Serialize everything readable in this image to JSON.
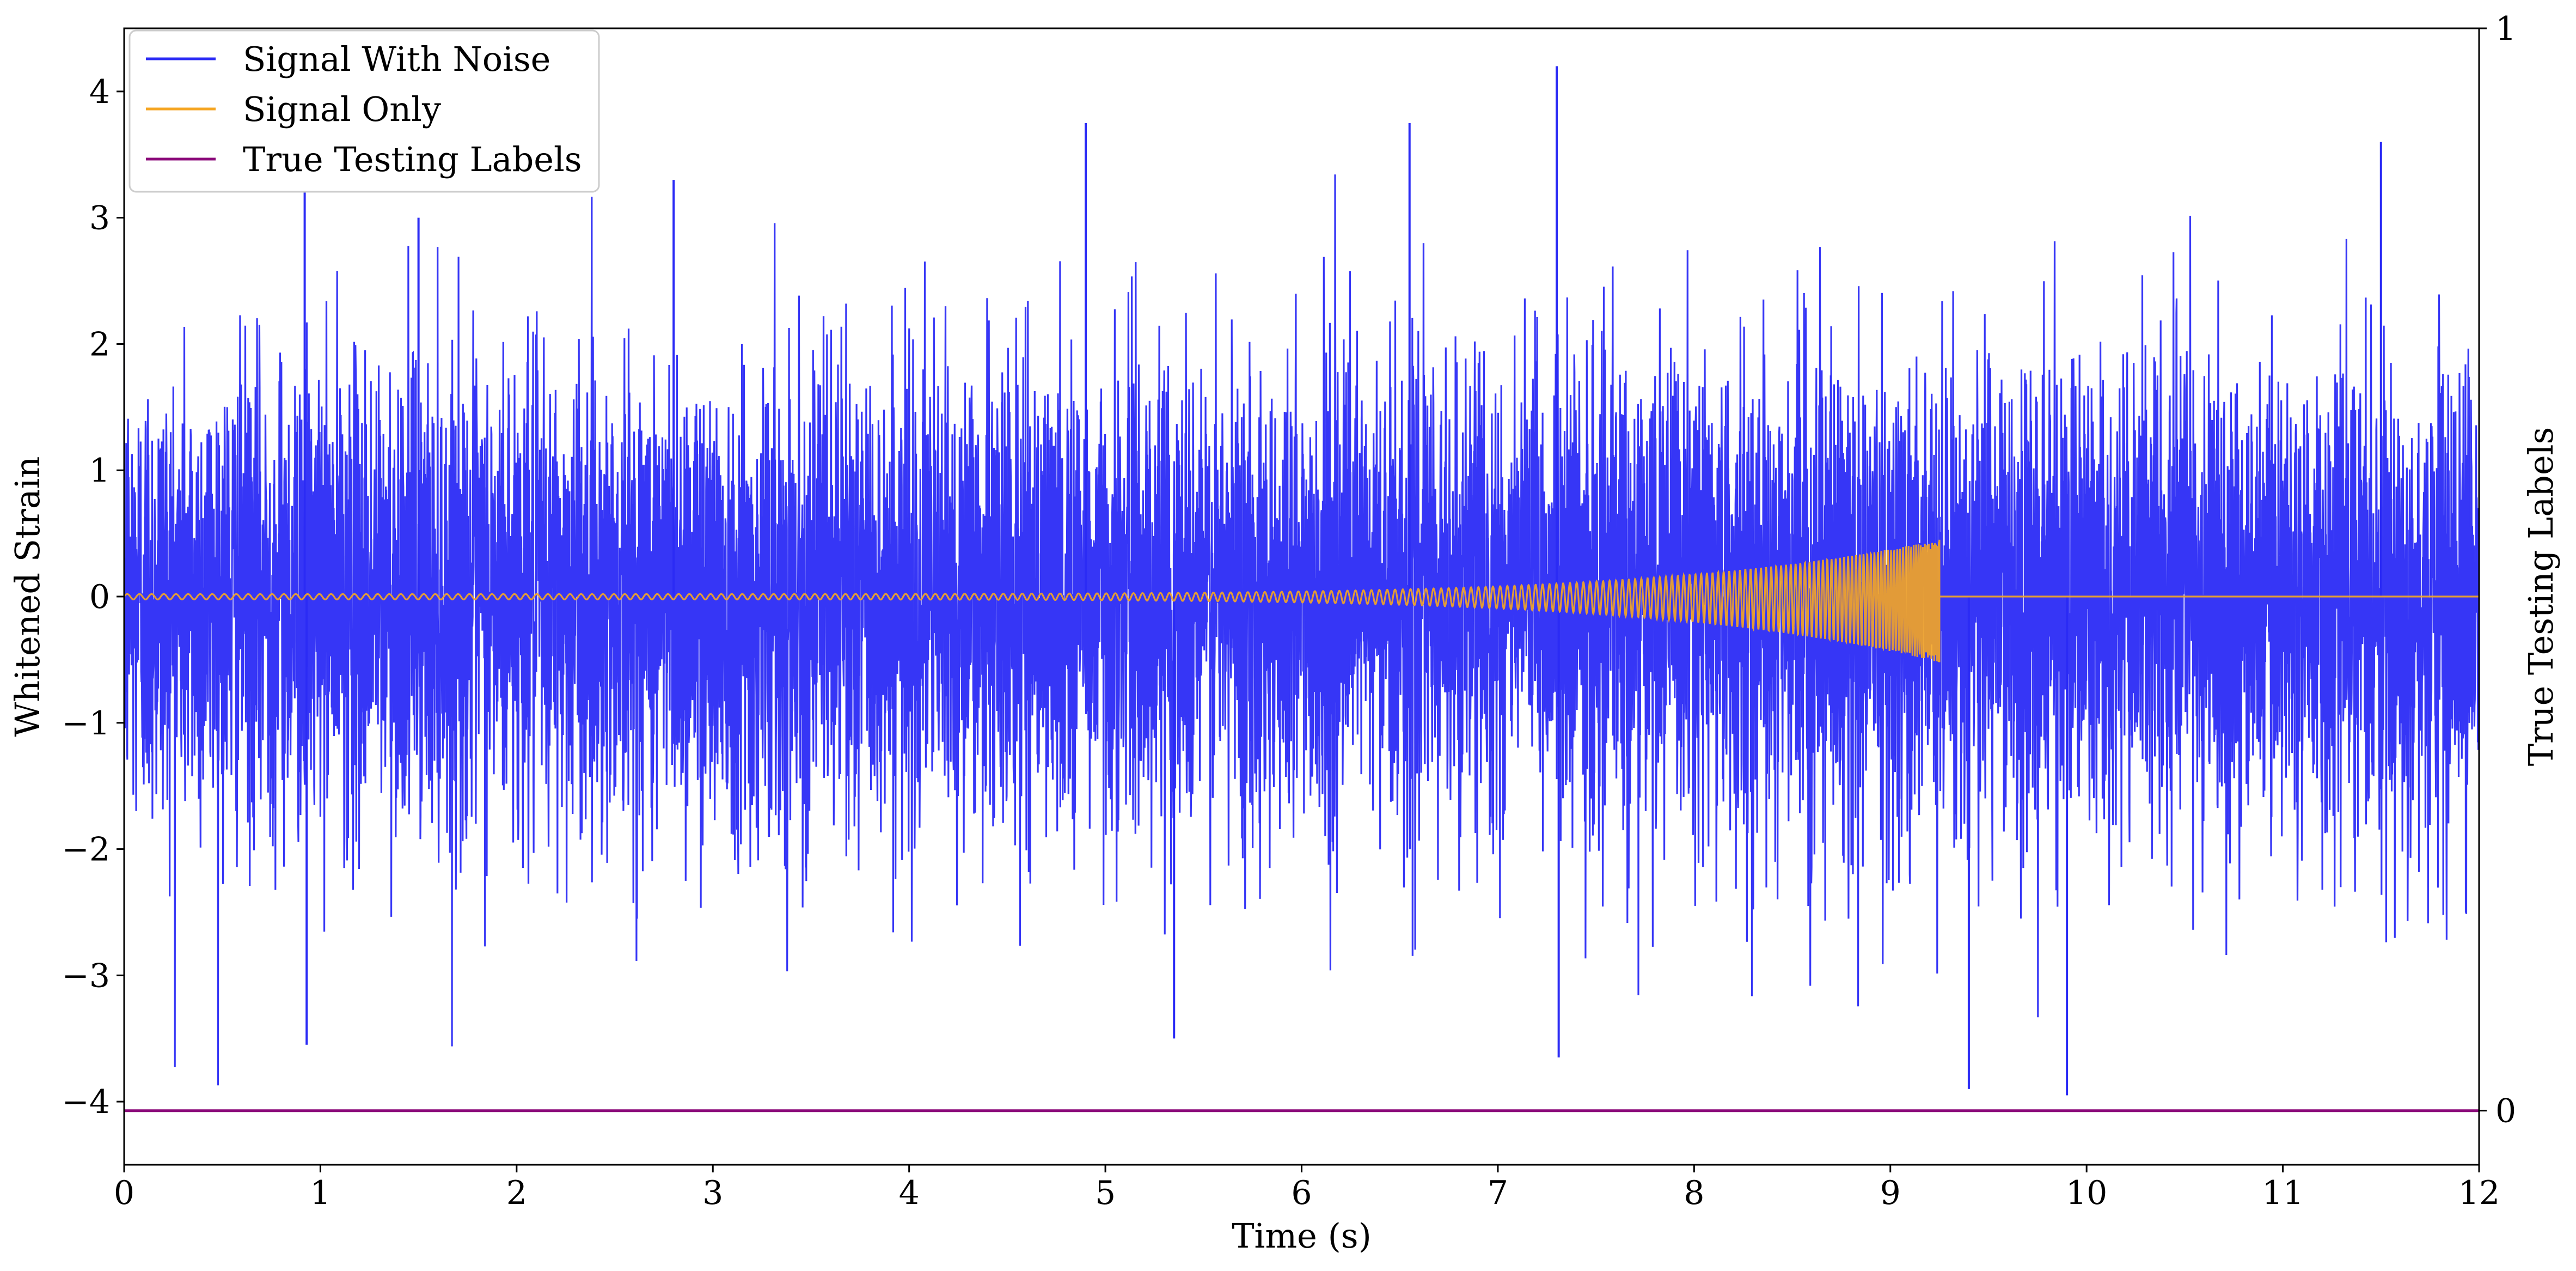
{
  "chart_data": {
    "type": "line",
    "xlabel": "Time (s)",
    "ylabel": "Whitened Strain",
    "y2label": "True Testing Labels",
    "xlim": [
      0,
      12
    ],
    "ylim": [
      -4.5,
      4.5
    ],
    "y2lim": [
      -0.05,
      1.0
    ],
    "x_ticks": [
      "0",
      "1",
      "2",
      "3",
      "4",
      "5",
      "6",
      "7",
      "8",
      "9",
      "10",
      "11",
      "12"
    ],
    "y_ticks": [
      "−4",
      "−3",
      "−2",
      "−1",
      "0",
      "1",
      "2",
      "3",
      "4"
    ],
    "y2_ticks": [
      "0",
      "1"
    ],
    "legend_position": "upper-left",
    "series": [
      {
        "name": "Signal With Noise",
        "color": "#2b2bf5",
        "description": "whitened noise, roughly within ±2.5 with spikes reaching about ±4",
        "x_range": [
          0,
          12
        ],
        "amplitude_bulk": 2.4,
        "amplitude_peak": 4.2,
        "peak_points": [
          [
            0.92,
            3.2
          ],
          [
            1.5,
            3.0
          ],
          [
            2.8,
            3.3
          ],
          [
            4.9,
            3.75
          ],
          [
            6.55,
            3.75
          ],
          [
            7.3,
            4.2
          ],
          [
            7.31,
            -3.65
          ],
          [
            9.4,
            -3.9
          ],
          [
            9.9,
            -3.95
          ],
          [
            11.5,
            3.6
          ],
          [
            0.93,
            -3.55
          ],
          [
            5.35,
            -3.5
          ]
        ]
      },
      {
        "name": "Signal Only",
        "color": "#f5a623",
        "description": "chirp with growing amplitude ending at merger",
        "x_range": [
          0,
          12
        ],
        "chirp_start_amplitude": 0.02,
        "chirp_peak_amplitude_positive": 0.45,
        "chirp_peak_amplitude_negative": -0.52,
        "merger_time": 9.25
      },
      {
        "name": "True Testing Labels",
        "color": "#8b0a7a",
        "axis": "right",
        "x": [
          0,
          12
        ],
        "y": [
          0,
          0
        ]
      }
    ]
  }
}
